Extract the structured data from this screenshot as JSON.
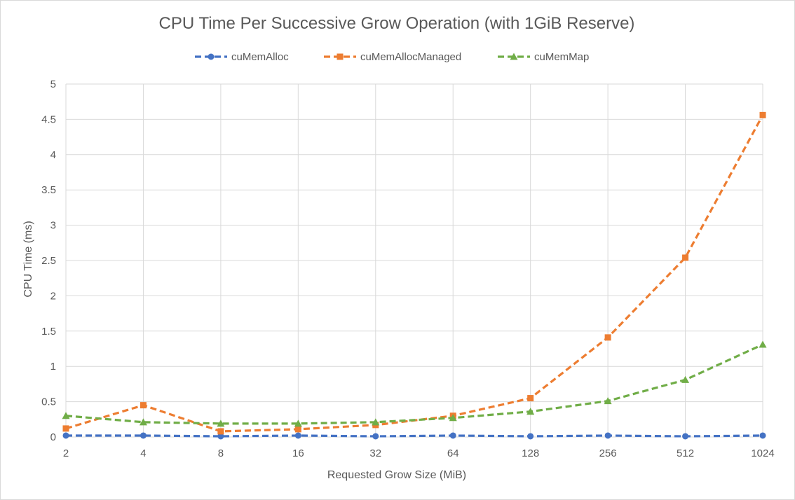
{
  "chart_data": {
    "type": "line",
    "title": "CPU Time Per Successive Grow Operation (with 1GiB Reserve)",
    "xlabel": "Requested Grow Size (MiB)",
    "ylabel": "CPU Time (ms)",
    "categories": [
      "2",
      "4",
      "8",
      "16",
      "32",
      "64",
      "128",
      "256",
      "512",
      "1024"
    ],
    "ylim": [
      0,
      5
    ],
    "yticks": [
      "0",
      "0.5",
      "1",
      "1.5",
      "2",
      "2.5",
      "3",
      "3.5",
      "4",
      "4.5",
      "5"
    ],
    "grid": true,
    "legend_position": "top",
    "series": [
      {
        "name": "cuMemAlloc",
        "color": "#4472c4",
        "marker": "circle",
        "values": [
          0.02,
          0.02,
          0.01,
          0.02,
          0.01,
          0.02,
          0.01,
          0.02,
          0.01,
          0.02
        ]
      },
      {
        "name": "cuMemAllocManaged",
        "color": "#ed7d31",
        "marker": "square",
        "values": [
          0.12,
          0.45,
          0.08,
          0.11,
          0.17,
          0.3,
          0.55,
          1.41,
          2.54,
          4.56
        ]
      },
      {
        "name": "cuMemMap",
        "color": "#70ad47",
        "marker": "triangle",
        "values": [
          0.3,
          0.21,
          0.19,
          0.19,
          0.21,
          0.27,
          0.36,
          0.51,
          0.81,
          1.31
        ]
      }
    ]
  }
}
